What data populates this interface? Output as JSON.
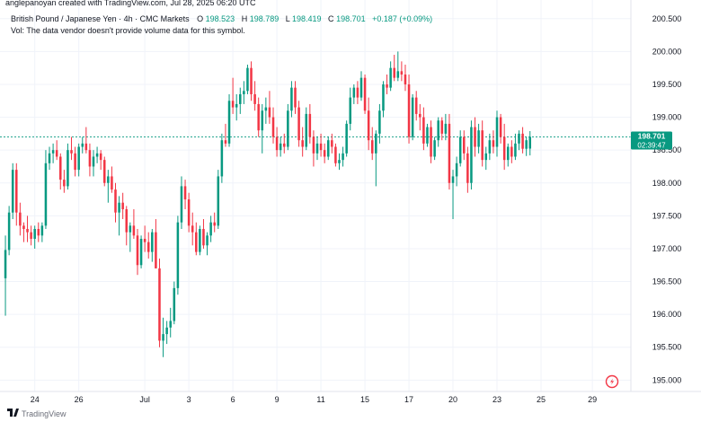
{
  "header": {
    "published_by": "anglepanoyan created with TradingView.com, Jul 28, 2025 06:20 UTC",
    "symbol": "British Pound / Japanese Yen · 4h · CMC Markets",
    "o_label": "O",
    "o_value": "198.523",
    "h_label": "H",
    "h_value": "198.789",
    "l_label": "L",
    "l_value": "198.419",
    "c_label": "C",
    "c_value": "198.701",
    "change": "+0.187 (+0.09%)",
    "volume_note": "Vol: The data vendor doesn't provide volume data for this symbol."
  },
  "price_label": {
    "price": "198.701",
    "countdown": "02:39:47"
  },
  "footer": {
    "brand": "TradingView"
  },
  "colors": {
    "up": "#089981",
    "down": "#f23645",
    "grid": "#f0f3fa",
    "axis_text": "#131722",
    "last_price_line": "#089981"
  },
  "chart_data": {
    "type": "candlestick",
    "title": "British Pound / Japanese Yen · 4h · CMC Markets",
    "ylim": [
      194.95,
      200.62
    ],
    "y_ticks": [
      195.0,
      195.5,
      196.0,
      196.5,
      197.0,
      197.5,
      198.0,
      198.5,
      199.0,
      199.5,
      200.0,
      200.5
    ],
    "y_tick_labels": [
      "195.000",
      "195.500",
      "196.000",
      "196.500",
      "197.000",
      "197.500",
      "198.000",
      "198.500",
      "199.000",
      "199.500",
      "200.000",
      "200.500"
    ],
    "x_ticks": [
      {
        "label": "24",
        "index": 8
      },
      {
        "label": "26",
        "index": 20
      },
      {
        "label": "Jul",
        "index": 38
      },
      {
        "label": "3",
        "index": 50
      },
      {
        "label": "6",
        "index": 62
      },
      {
        "label": "9",
        "index": 74
      },
      {
        "label": "11",
        "index": 86
      },
      {
        "label": "15",
        "index": 98
      },
      {
        "label": "17",
        "index": 110
      },
      {
        "label": "20",
        "index": 122
      },
      {
        "label": "23",
        "index": 134
      },
      {
        "label": "25",
        "index": 146
      },
      {
        "label": "29",
        "index": 160
      }
    ],
    "x_slots": 171,
    "last_price": 198.701,
    "candles": [
      [
        196.55,
        197.2,
        195.98,
        196.98
      ],
      [
        196.98,
        197.65,
        196.9,
        197.55
      ],
      [
        197.55,
        198.3,
        197.45,
        198.2
      ],
      [
        198.2,
        198.3,
        197.35,
        197.55
      ],
      [
        197.55,
        197.7,
        197.2,
        197.35
      ],
      [
        197.35,
        197.4,
        197.1,
        197.3
      ],
      [
        197.3,
        197.5,
        197.1,
        197.25
      ],
      [
        197.25,
        197.35,
        197.05,
        197.15
      ],
      [
        197.15,
        197.35,
        197.0,
        197.3
      ],
      [
        197.3,
        197.4,
        197.1,
        197.2
      ],
      [
        197.2,
        197.4,
        197.1,
        197.35
      ],
      [
        197.35,
        198.5,
        197.3,
        198.3
      ],
      [
        198.3,
        198.55,
        198.2,
        198.45
      ],
      [
        198.45,
        198.6,
        198.3,
        198.5
      ],
      [
        198.5,
        198.65,
        198.35,
        198.4
      ],
      [
        198.4,
        198.45,
        197.9,
        198.05
      ],
      [
        198.05,
        198.2,
        197.85,
        197.95
      ],
      [
        197.95,
        198.6,
        197.9,
        198.5
      ],
      [
        198.5,
        198.7,
        198.35,
        198.45
      ],
      [
        198.45,
        198.55,
        198.1,
        198.2
      ],
      [
        198.2,
        198.6,
        198.1,
        198.55
      ],
      [
        198.55,
        198.7,
        198.45,
        198.6
      ],
      [
        198.6,
        198.85,
        198.45,
        198.5
      ],
      [
        198.5,
        198.6,
        198.1,
        198.25
      ],
      [
        198.25,
        198.5,
        198.1,
        198.4
      ],
      [
        198.4,
        198.55,
        198.3,
        198.45
      ],
      [
        198.45,
        198.5,
        198.2,
        198.35
      ],
      [
        198.35,
        198.4,
        197.95,
        198.0
      ],
      [
        198.0,
        198.2,
        197.7,
        198.1
      ],
      [
        198.1,
        198.25,
        197.85,
        197.9
      ],
      [
        197.9,
        198.0,
        197.4,
        197.55
      ],
      [
        197.55,
        197.8,
        197.2,
        197.7
      ],
      [
        197.7,
        197.85,
        197.45,
        197.6
      ],
      [
        197.6,
        197.65,
        197.05,
        197.25
      ],
      [
        197.25,
        197.4,
        196.95,
        197.35
      ],
      [
        197.35,
        197.6,
        197.15,
        197.2
      ],
      [
        197.2,
        197.3,
        196.6,
        196.75
      ],
      [
        196.75,
        197.2,
        196.7,
        197.15
      ],
      [
        197.15,
        197.35,
        196.95,
        197.1
      ],
      [
        197.1,
        197.25,
        196.85,
        196.95
      ],
      [
        196.95,
        197.3,
        196.8,
        197.25
      ],
      [
        197.25,
        197.45,
        196.7,
        196.7
      ],
      [
        196.7,
        196.85,
        195.5,
        195.6
      ],
      [
        195.6,
        195.95,
        195.35,
        195.7
      ],
      [
        195.7,
        195.9,
        195.55,
        195.8
      ],
      [
        195.8,
        196.1,
        195.65,
        195.9
      ],
      [
        195.9,
        196.5,
        195.85,
        196.4
      ],
      [
        196.4,
        197.5,
        196.3,
        197.4
      ],
      [
        197.4,
        198.1,
        197.3,
        197.95
      ],
      [
        197.95,
        198.05,
        197.6,
        197.75
      ],
      [
        197.75,
        197.85,
        197.25,
        197.35
      ],
      [
        197.35,
        197.55,
        197.05,
        197.25
      ],
      [
        197.25,
        197.4,
        196.9,
        196.95
      ],
      [
        196.95,
        197.35,
        196.9,
        197.3
      ],
      [
        197.3,
        197.45,
        197.0,
        197.05
      ],
      [
        197.05,
        197.25,
        196.9,
        197.2
      ],
      [
        197.2,
        197.5,
        197.1,
        197.4
      ],
      [
        197.4,
        197.55,
        197.25,
        197.35
      ],
      [
        197.35,
        198.2,
        197.3,
        198.1
      ],
      [
        198.1,
        198.75,
        198.0,
        198.65
      ],
      [
        198.65,
        198.9,
        198.55,
        198.6
      ],
      [
        198.6,
        199.35,
        198.55,
        199.25
      ],
      [
        199.25,
        199.6,
        199.05,
        199.15
      ],
      [
        199.15,
        199.35,
        198.95,
        199.2
      ],
      [
        199.2,
        199.45,
        199.05,
        199.35
      ],
      [
        199.35,
        199.55,
        199.2,
        199.4
      ],
      [
        199.4,
        199.8,
        199.35,
        199.75
      ],
      [
        199.75,
        199.85,
        199.25,
        199.35
      ],
      [
        199.35,
        199.55,
        199.1,
        199.2
      ],
      [
        199.2,
        199.3,
        198.7,
        198.8
      ],
      [
        198.8,
        199.2,
        198.45,
        199.1
      ],
      [
        199.1,
        199.3,
        198.9,
        199.15
      ],
      [
        199.15,
        199.4,
        198.9,
        199.0
      ],
      [
        199.0,
        199.15,
        198.6,
        198.7
      ],
      [
        198.7,
        198.85,
        198.4,
        198.5
      ],
      [
        198.5,
        198.7,
        198.4,
        198.6
      ],
      [
        198.6,
        198.75,
        198.45,
        198.55
      ],
      [
        198.55,
        199.2,
        198.5,
        199.1
      ],
      [
        199.1,
        199.55,
        199.0,
        199.45
      ],
      [
        199.45,
        199.55,
        199.05,
        199.15
      ],
      [
        199.15,
        199.25,
        198.55,
        198.65
      ],
      [
        198.65,
        198.85,
        198.4,
        198.55
      ],
      [
        198.55,
        199.15,
        198.5,
        199.05
      ],
      [
        199.05,
        199.2,
        198.6,
        198.7
      ],
      [
        198.7,
        198.8,
        198.25,
        198.45
      ],
      [
        198.45,
        198.7,
        198.35,
        198.6
      ],
      [
        198.6,
        198.75,
        198.4,
        198.5
      ],
      [
        198.5,
        198.6,
        198.3,
        198.4
      ],
      [
        198.4,
        198.7,
        198.35,
        198.65
      ],
      [
        198.65,
        198.75,
        198.45,
        198.55
      ],
      [
        198.55,
        198.6,
        198.25,
        198.3
      ],
      [
        198.3,
        198.45,
        198.2,
        198.35
      ],
      [
        198.35,
        198.55,
        198.25,
        198.45
      ],
      [
        198.45,
        198.95,
        198.4,
        198.9
      ],
      [
        198.9,
        199.45,
        198.8,
        199.3
      ],
      [
        199.3,
        199.5,
        199.2,
        199.45
      ],
      [
        199.45,
        199.55,
        199.2,
        199.3
      ],
      [
        199.3,
        199.7,
        199.25,
        199.6
      ],
      [
        199.6,
        199.65,
        199.05,
        199.1
      ],
      [
        199.1,
        199.3,
        198.5,
        198.65
      ],
      [
        198.65,
        198.85,
        198.35,
        198.45
      ],
      [
        198.45,
        198.8,
        197.95,
        198.75
      ],
      [
        198.75,
        199.2,
        198.6,
        199.1
      ],
      [
        199.1,
        199.55,
        199.0,
        199.5
      ],
      [
        199.5,
        199.65,
        199.35,
        199.45
      ],
      [
        199.45,
        199.85,
        199.4,
        199.75
      ],
      [
        199.75,
        199.95,
        199.55,
        199.6
      ],
      [
        199.6,
        200.0,
        199.55,
        199.7
      ],
      [
        199.7,
        199.85,
        199.55,
        199.65
      ],
      [
        199.65,
        199.8,
        199.4,
        199.5
      ],
      [
        199.5,
        199.65,
        198.6,
        198.7
      ],
      [
        198.7,
        199.35,
        198.65,
        199.3
      ],
      [
        199.3,
        199.4,
        198.95,
        199.05
      ],
      [
        199.05,
        199.2,
        198.8,
        199.0
      ],
      [
        199.0,
        199.15,
        198.5,
        198.6
      ],
      [
        198.6,
        198.9,
        198.55,
        198.85
      ],
      [
        198.85,
        198.95,
        198.3,
        198.4
      ],
      [
        198.4,
        198.7,
        198.35,
        198.65
      ],
      [
        198.65,
        199.0,
        198.55,
        198.95
      ],
      [
        198.95,
        199.0,
        198.65,
        198.75
      ],
      [
        198.75,
        199.05,
        198.65,
        198.9
      ],
      [
        198.9,
        199.05,
        197.9,
        198.0
      ],
      [
        198.0,
        198.2,
        197.45,
        198.1
      ],
      [
        198.1,
        198.4,
        197.95,
        198.3
      ],
      [
        198.3,
        198.8,
        198.25,
        198.7
      ],
      [
        198.7,
        198.8,
        198.35,
        198.45
      ],
      [
        198.45,
        198.55,
        197.85,
        198.0
      ],
      [
        198.0,
        198.95,
        197.9,
        198.85
      ],
      [
        198.85,
        199.0,
        198.4,
        198.55
      ],
      [
        198.55,
        198.9,
        198.45,
        198.8
      ],
      [
        198.8,
        198.95,
        198.25,
        198.35
      ],
      [
        198.35,
        198.55,
        198.2,
        198.45
      ],
      [
        198.45,
        198.75,
        198.35,
        198.65
      ],
      [
        198.65,
        198.8,
        198.45,
        198.55
      ],
      [
        198.55,
        199.1,
        198.4,
        199.0
      ],
      [
        199.0,
        199.05,
        198.6,
        198.7
      ],
      [
        198.7,
        198.9,
        198.2,
        198.35
      ],
      [
        198.35,
        198.6,
        198.25,
        198.55
      ],
      [
        198.55,
        198.65,
        198.3,
        198.4
      ],
      [
        198.4,
        198.75,
        198.35,
        198.6
      ],
      [
        198.6,
        198.8,
        198.5,
        198.75
      ],
      [
        198.75,
        198.85,
        198.45,
        198.52
      ],
      [
        198.52,
        198.7,
        198.41,
        198.65
      ],
      [
        198.523,
        198.789,
        198.419,
        198.701
      ]
    ]
  }
}
